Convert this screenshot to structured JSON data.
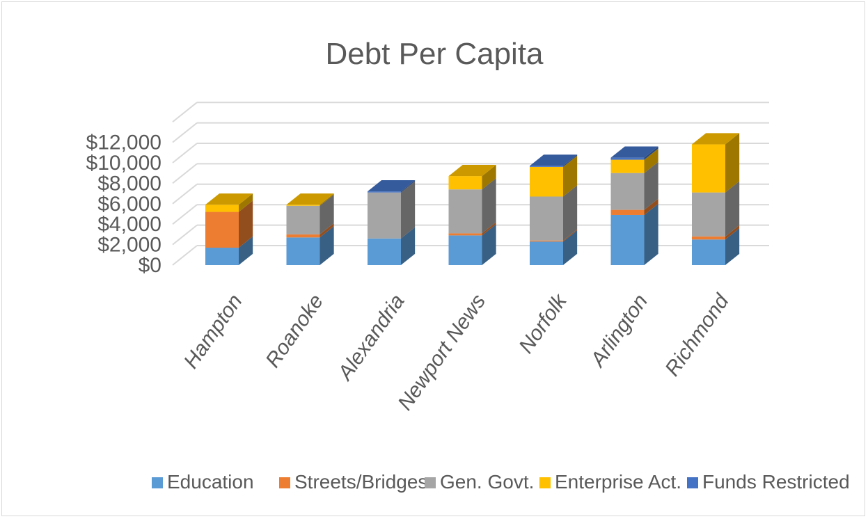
{
  "chart_data": {
    "type": "bar",
    "stacked": true,
    "three_d": true,
    "title": "Debt Per Capita",
    "categories": [
      "Hampton",
      "Roanoke",
      "Alexandria",
      "Newport News",
      "Norfolk",
      "Arlington",
      "Richmond"
    ],
    "series": [
      {
        "name": "Education",
        "color": "#5b9bd5",
        "values": [
          1700,
          2700,
          2600,
          2900,
          2300,
          4900,
          2500
        ]
      },
      {
        "name": "Streets/Bridges",
        "color": "#ed7d31",
        "values": [
          3500,
          300,
          0,
          200,
          100,
          500,
          300
        ]
      },
      {
        "name": "Gen. Govt.",
        "color": "#a5a5a5",
        "values": [
          0,
          2800,
          4500,
          4300,
          4300,
          3600,
          4300
        ]
      },
      {
        "name": "Enterprise Act.",
        "color": "#ffc000",
        "values": [
          700,
          100,
          0,
          1300,
          2900,
          1300,
          4700
        ]
      },
      {
        "name": "Funds Restricted",
        "color": "#4472c4",
        "values": [
          0,
          0,
          100,
          0,
          100,
          200,
          0
        ]
      }
    ],
    "y_ticks": [
      "$0",
      "$2,000",
      "$4,000",
      "$6,000",
      "$8,000",
      "$10,000",
      "$12,000"
    ],
    "ylim": [
      0,
      12000
    ],
    "grid": true,
    "legend": "bottom"
  }
}
